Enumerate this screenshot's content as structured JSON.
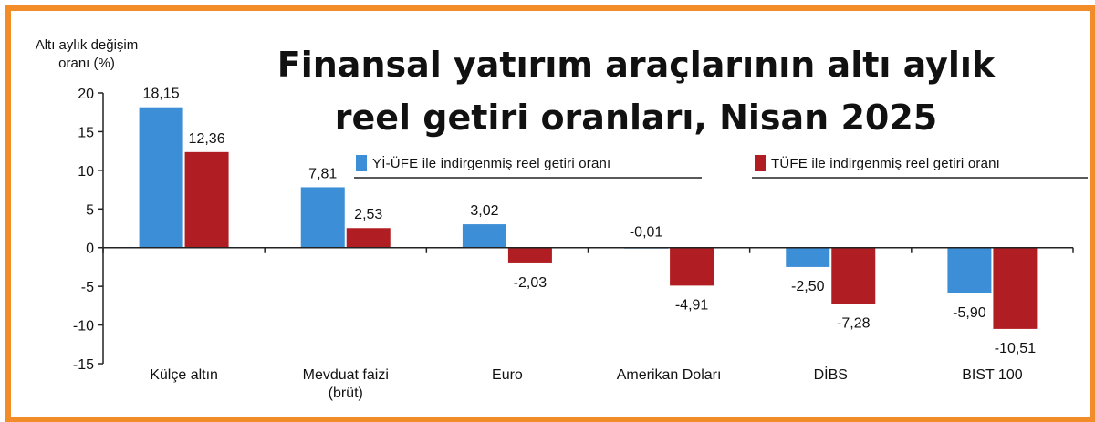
{
  "title": "Finansal yatırım araçlarının altı aylık reel getiri oranları, Nisan 2025",
  "ylabel": "Altı aylık değişim oranı (%)",
  "colors": {
    "frame": "#f28c28",
    "series1": "#3c8fd6",
    "series2": "#b01e23",
    "axis": "#222222"
  },
  "chart_data": {
    "type": "bar",
    "categories": [
      "Külçe altın",
      "Mevduat faizi (brüt)",
      "Euro",
      "Amerikan Doları",
      "DİBS",
      "BIST 100"
    ],
    "series": [
      {
        "name": "Yİ-ÜFE ile indirgenmiş reel getiri oranı",
        "values": [
          18.15,
          7.81,
          3.02,
          -0.01,
          -2.5,
          -5.9
        ],
        "labels": [
          "18,15",
          "7,81",
          "3,02",
          "-0,01",
          "-2,50",
          "-5,90"
        ]
      },
      {
        "name": "TÜFE ile indirgenmiş reel getiri oranı",
        "values": [
          12.36,
          2.53,
          -2.03,
          -4.91,
          -7.28,
          -10.51
        ],
        "labels": [
          "12,36",
          "2,53",
          "-2,03",
          "-4,91",
          "-7,28",
          "-10,51"
        ]
      }
    ],
    "yticks": [
      "20",
      "15",
      "10",
      "5",
      "0",
      "-5",
      "-10",
      "-15"
    ],
    "ylim": [
      -15,
      20
    ],
    "grid": false,
    "legend": "top-right"
  }
}
